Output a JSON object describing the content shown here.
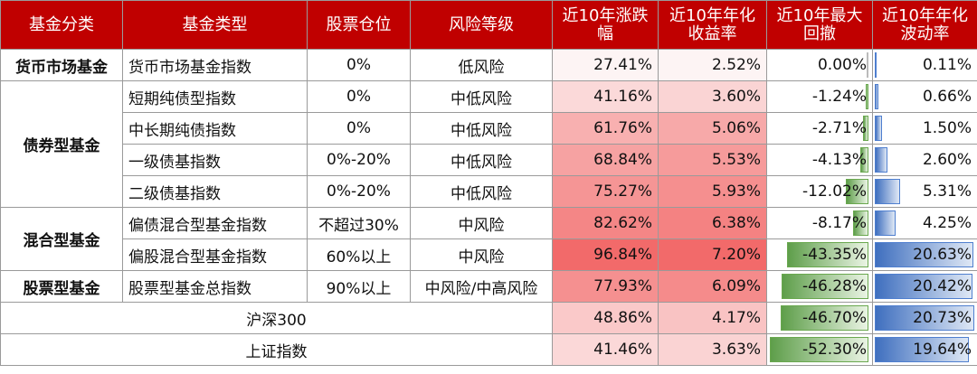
{
  "headers": [
    "基金分类",
    "基金类型",
    "股票仓位",
    "风险等级",
    "近10年涨跌\n幅",
    "近10年年化\n收益率",
    "近10年最大\n回撤",
    "近10年年化\n波动率"
  ],
  "categories": {
    "money": "货币市场基金",
    "bond": "债券型基金",
    "mixed": "混合型基金",
    "stock": "股票型基金"
  },
  "rows": [
    {
      "type": "货币市场基金指数",
      "position": "0%",
      "risk": "低风险",
      "change": "27.41%",
      "annual": "2.52%",
      "drawdown": "0.00%",
      "volatility": "0.11%",
      "change_v": 27.41,
      "annual_v": 2.52,
      "drawdown_v": 0.0,
      "volatility_v": 0.11
    },
    {
      "type": "短期纯债型指数",
      "position": "0%",
      "risk": "中低风险",
      "change": "41.16%",
      "annual": "3.60%",
      "drawdown": "-1.24%",
      "volatility": "0.66%",
      "change_v": 41.16,
      "annual_v": 3.6,
      "drawdown_v": -1.24,
      "volatility_v": 0.66
    },
    {
      "type": "中长期纯债指数",
      "position": "0%",
      "risk": "中低风险",
      "change": "61.76%",
      "annual": "5.06%",
      "drawdown": "-2.71%",
      "volatility": "1.50%",
      "change_v": 61.76,
      "annual_v": 5.06,
      "drawdown_v": -2.71,
      "volatility_v": 1.5
    },
    {
      "type": "一级债基指数",
      "position": "0%-20%",
      "risk": "中低风险",
      "change": "68.84%",
      "annual": "5.53%",
      "drawdown": "-4.13%",
      "volatility": "2.60%",
      "change_v": 68.84,
      "annual_v": 5.53,
      "drawdown_v": -4.13,
      "volatility_v": 2.6
    },
    {
      "type": "二级债基指数",
      "position": "0%-20%",
      "risk": "中低风险",
      "change": "75.27%",
      "annual": "5.93%",
      "drawdown": "-12.02%",
      "volatility": "5.31%",
      "change_v": 75.27,
      "annual_v": 5.93,
      "drawdown_v": -12.02,
      "volatility_v": 5.31
    },
    {
      "type": "偏债混合型基金指数",
      "position": "不超过30%",
      "risk": "中风险",
      "change": "82.62%",
      "annual": "6.38%",
      "drawdown": "-8.17%",
      "volatility": "4.25%",
      "change_v": 82.62,
      "annual_v": 6.38,
      "drawdown_v": -8.17,
      "volatility_v": 4.25
    },
    {
      "type": "偏股混合型基金指数",
      "position": "60%以上",
      "risk": "中风险",
      "change": "96.84%",
      "annual": "7.20%",
      "drawdown": "-43.35%",
      "volatility": "20.63%",
      "change_v": 96.84,
      "annual_v": 7.2,
      "drawdown_v": -43.35,
      "volatility_v": 20.63
    },
    {
      "type": "股票型基金总指数",
      "position": "90%以上",
      "risk": "中风险/中高风险",
      "change": "77.93%",
      "annual": "6.09%",
      "drawdown": "-46.28%",
      "volatility": "20.42%",
      "change_v": 77.93,
      "annual_v": 6.09,
      "drawdown_v": -46.28,
      "volatility_v": 20.42
    },
    {
      "type": "沪深300",
      "change": "48.86%",
      "annual": "4.17%",
      "drawdown": "-46.70%",
      "volatility": "20.73%",
      "change_v": 48.86,
      "annual_v": 4.17,
      "drawdown_v": -46.7,
      "volatility_v": 20.73
    },
    {
      "type": "上证指数",
      "change": "41.46%",
      "annual": "3.63%",
      "drawdown": "-52.30%",
      "volatility": "19.64%",
      "change_v": 41.46,
      "annual_v": 3.63,
      "drawdown_v": -52.3,
      "volatility_v": 19.64
    }
  ],
  "colors": {
    "header_bg": "#c00000",
    "heat_high": "#f26a6a",
    "heat_low": "#fdf4f4",
    "drawdown_bar": "#5e9e4a",
    "volatility_bar": "#3f6fbf"
  }
}
